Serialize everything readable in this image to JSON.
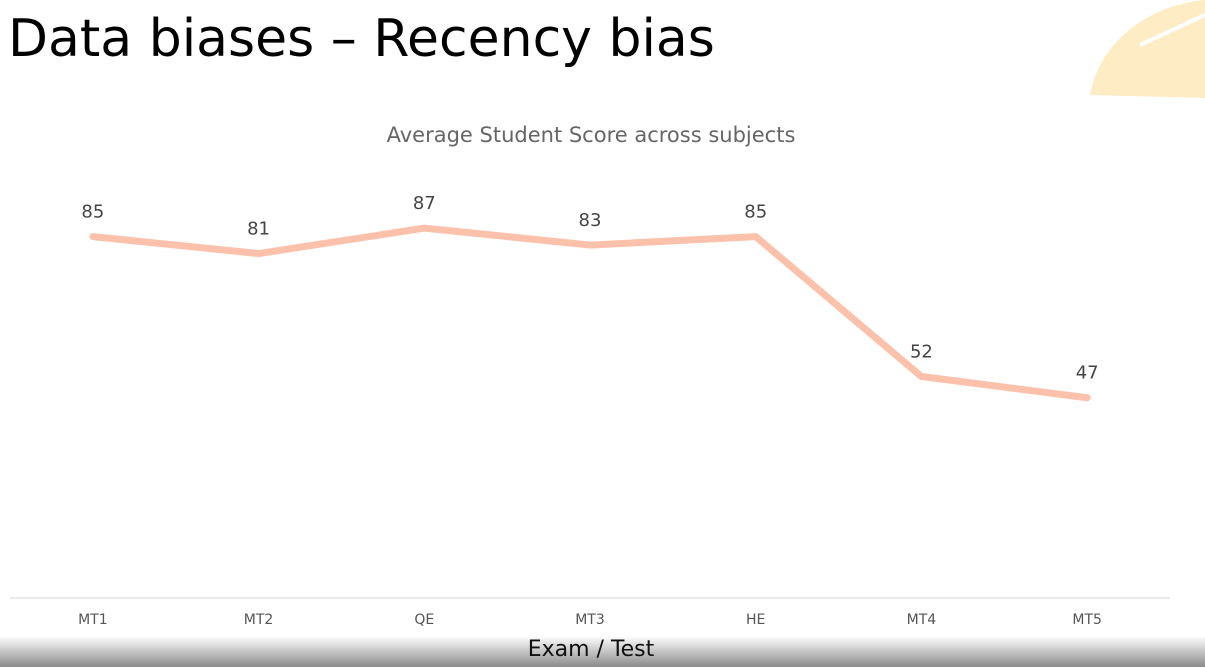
{
  "slide_title": "Data biases – Recency bias",
  "chart_data": {
    "type": "line",
    "title": "Average Student Score across subjects",
    "x_label": "Exam / Test",
    "categories": [
      "MT1",
      "MT2",
      "QE",
      "MT3",
      "HE",
      "MT4",
      "MT5"
    ],
    "values": [
      85,
      81,
      87,
      83,
      85,
      52,
      47
    ],
    "color": "#fcc1aa",
    "ylim": [
      0,
      100
    ]
  }
}
